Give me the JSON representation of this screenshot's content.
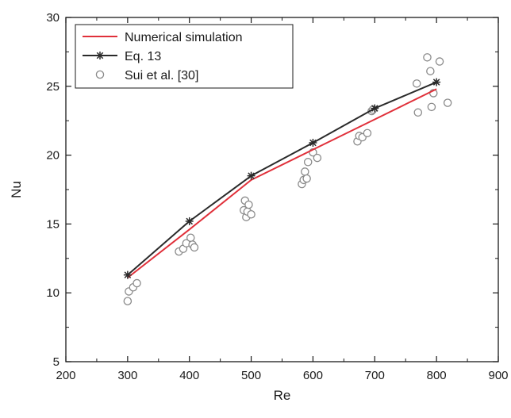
{
  "chart_data": {
    "type": "line",
    "xlabel": "Re",
    "ylabel": "Nu",
    "xlim": [
      200,
      900
    ],
    "ylim": [
      5,
      30
    ],
    "x_ticks": [
      200,
      300,
      400,
      500,
      600,
      700,
      800,
      900
    ],
    "y_ticks": [
      5,
      10,
      15,
      20,
      25,
      30
    ],
    "grid": false,
    "legend_position": "top-left",
    "series": [
      {
        "name": "Numerical simulation",
        "style": "line",
        "color": "#e0303a",
        "x": [
          300,
          400,
          500,
          600,
          700,
          800
        ],
        "y": [
          11.1,
          14.6,
          18.2,
          20.4,
          22.6,
          24.8
        ]
      },
      {
        "name": "Eq. 13",
        "style": "line-star",
        "color": "#2a2a2a",
        "x": [
          300,
          400,
          500,
          600,
          700,
          800
        ],
        "y": [
          11.3,
          15.2,
          18.5,
          20.9,
          23.4,
          25.3
        ]
      },
      {
        "name": "Sui et al. [30]",
        "style": "open-circle",
        "color": "#8a8a8a",
        "x": [
          300,
          302,
          309,
          315,
          383,
          390,
          395,
          402,
          405,
          408,
          488,
          490,
          492,
          494,
          496,
          500,
          582,
          585,
          587,
          590,
          592,
          600,
          607,
          672,
          675,
          680,
          688,
          695,
          697,
          768,
          770,
          785,
          790,
          792,
          795,
          805,
          818
        ],
        "y": [
          9.4,
          10.1,
          10.4,
          10.7,
          13.0,
          13.2,
          13.6,
          14.0,
          13.5,
          13.3,
          16.0,
          16.7,
          15.5,
          15.9,
          16.4,
          15.7,
          17.9,
          18.2,
          18.8,
          18.3,
          19.5,
          20.2,
          19.8,
          21.0,
          21.4,
          21.3,
          21.6,
          23.2,
          23.3,
          25.2,
          23.1,
          27.1,
          26.1,
          23.5,
          24.5,
          26.8,
          23.8
        ]
      }
    ]
  }
}
